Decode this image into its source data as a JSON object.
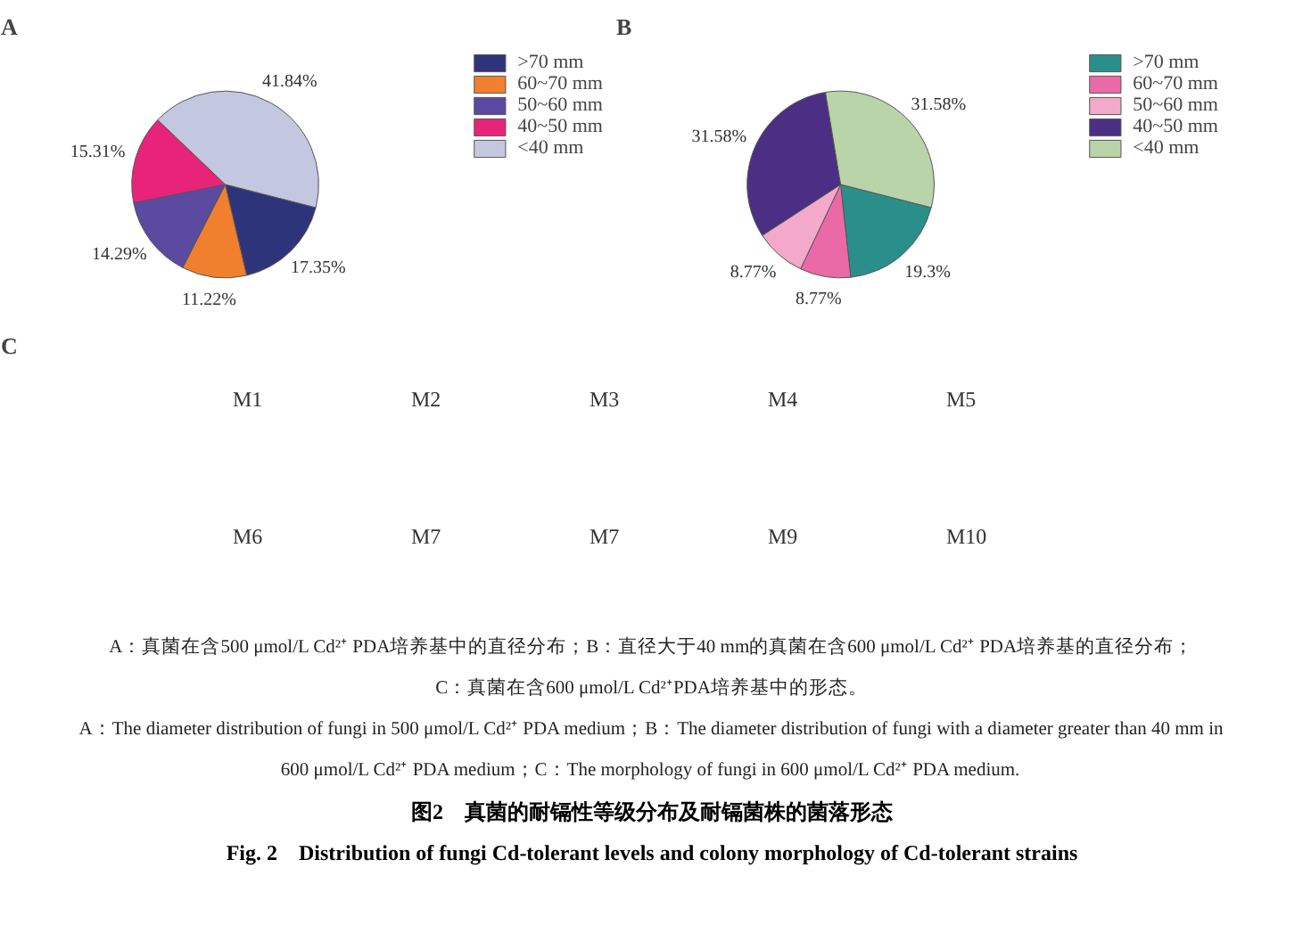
{
  "chart_data": [
    {
      "type": "pie",
      "title": "A",
      "categories": [
        ">70 mm",
        "60~70 mm",
        "50~60 mm",
        "40~50 mm",
        "<40 mm"
      ],
      "values": [
        17.35,
        11.22,
        14.29,
        15.31,
        41.84
      ],
      "colors": [
        "#2e3479",
        "#f07f2e",
        "#5a4aa0",
        "#e8237a",
        "#c3c7e0"
      ],
      "value_labels": [
        "17.35%",
        "11.22%",
        "14.29%",
        "15.31%",
        "41.84%"
      ],
      "legend": "top right"
    },
    {
      "type": "pie",
      "title": "B",
      "categories": [
        ">70 mm",
        "60~70 mm",
        "50~60 mm",
        "40~50 mm",
        "<40 mm"
      ],
      "values": [
        19.3,
        8.77,
        8.77,
        31.58,
        31.58
      ],
      "colors": [
        "#2a8f8a",
        "#e96aa6",
        "#f3a9c9",
        "#4a2f84",
        "#b8d4a8"
      ],
      "value_labels": [
        "19.3%",
        "8.77%",
        "8.77%",
        "31.58%",
        "31.58%"
      ],
      "legend": "top right"
    },
    {
      "type": "other",
      "title": "C",
      "annotations": [
        "M1",
        "M2",
        "M3",
        "M4",
        "M5",
        "M6",
        "M7",
        "M7",
        "M9",
        "M10"
      ]
    },
    {
      "type": "other",
      "title": "图2　真菌的耐镉性等级分布及耐镉菌株的菌落形态",
      "subtitle": "Fig. 2　Distribution of fungi Cd-tolerant levels and colony morphology of Cd-tolerant strains",
      "annotations": [
        "A：真菌在含500 μmol/L Cd²⁺ PDA培养基中的直径分布；B：直径大于40 mm的真菌在含600 μmol/L Cd²⁺ PDA培养基的直径分布；",
        "C：真菌在含600 μmol/L Cd²⁺PDA培养基中的形态。",
        "A：The diameter distribution of fungi in 500 μmol/L Cd²⁺ PDA medium；B：The diameter distribution of fungi with a diameter greater than 40 mm in",
        "600 μmol/L Cd²⁺ PDA medium；C：The morphology of fungi in 600 μmol/L Cd²⁺ PDA medium."
      ]
    }
  ]
}
